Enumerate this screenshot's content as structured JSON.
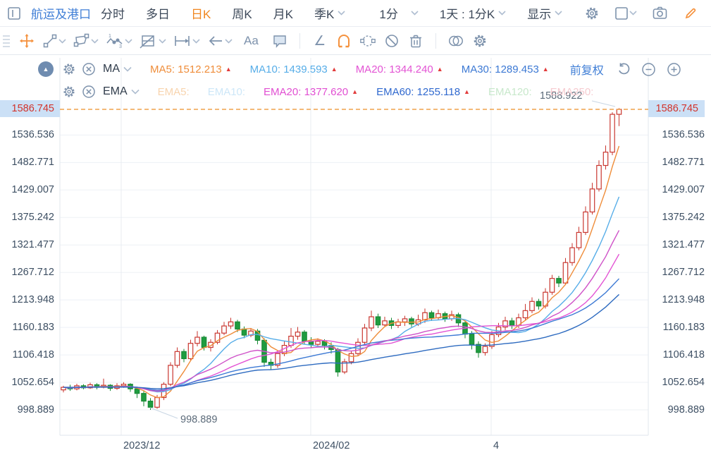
{
  "header": {
    "title": "航运及港口",
    "menu": [
      {
        "label": "分时"
      },
      {
        "label": "多日"
      },
      {
        "label": "日K"
      },
      {
        "label": "周K"
      },
      {
        "label": "月K"
      },
      {
        "label": "季K"
      },
      {
        "label": "1分"
      },
      {
        "label": "1天 : 1分K"
      },
      {
        "label": "显示"
      }
    ]
  },
  "icons": {
    "up_arrow": "▲",
    "collapse_arrow": "▲",
    "text_tool": "Aa",
    "angle_tool": "∠"
  },
  "colors": {
    "accent_orange": "#f5923e",
    "active_tab": "#f0861f",
    "title_blue": "#3f7ed6",
    "up_candle": "#c9362f",
    "down_candle": "#1f9c40",
    "price_line": "#efa24c",
    "chip_bg": "#cbe0f6",
    "chip_text": "#d2332b"
  },
  "indicators": {
    "ma": {
      "name": "MA",
      "adjust_label": "前复权",
      "items": [
        {
          "text": "MA5: 1512.213",
          "color": "#ef8d3a",
          "arrow": true
        },
        {
          "text": "MA10: 1439.593",
          "color": "#56ade8",
          "arrow": true
        },
        {
          "text": "MA20: 1344.240",
          "color": "#e354d4",
          "arrow": true
        },
        {
          "text": "MA30: 1289.453",
          "color": "#3c79d4",
          "arrow": true
        }
      ]
    },
    "ema": {
      "name": "EMA",
      "items": [
        {
          "text": "EMA5:",
          "color": "#f8d4ae",
          "arrow": false
        },
        {
          "text": "EMA10:",
          "color": "#cde7f8",
          "arrow": false
        },
        {
          "text": "EMA20: 1377.620",
          "color": "#e14fd2",
          "arrow": true
        },
        {
          "text": "EMA60: 1255.118",
          "color": "#3069cf",
          "arrow": true
        },
        {
          "text": "EMA120:",
          "color": "#c8e8cb",
          "arrow": false
        },
        {
          "text": "EMA250:",
          "color": "#f6cbd0",
          "arrow": false
        }
      ]
    }
  },
  "chart_data": {
    "type": "candlestick",
    "title": "航运及港口 日K",
    "last_price": "1586.745",
    "high_annotation": "1588.922",
    "low_annotation": "998.889",
    "y_axis_labels": [
      "1586.745",
      "1536.536",
      "1482.771",
      "1429.007",
      "1375.242",
      "1321.477",
      "1267.712",
      "1213.948",
      "1160.183",
      "1106.418",
      "1052.654",
      "998.889"
    ],
    "y_range": [
      998.889,
      1586.745
    ],
    "x_ticks": [
      {
        "label": "2023/12",
        "x": 172
      },
      {
        "label": "2024/02",
        "x": 441
      },
      {
        "label": "4",
        "x": 697
      }
    ],
    "grid": true,
    "legend_position": "top",
    "candles_ohlc": [
      [
        1038,
        1046,
        1033,
        1043
      ],
      [
        1043,
        1048,
        1036,
        1040
      ],
      [
        1040,
        1050,
        1037,
        1046
      ],
      [
        1046,
        1049,
        1039,
        1042
      ],
      [
        1042,
        1052,
        1040,
        1048
      ],
      [
        1048,
        1051,
        1039,
        1043
      ],
      [
        1043,
        1060,
        1041,
        1047
      ],
      [
        1047,
        1049,
        1036,
        1041
      ],
      [
        1041,
        1051,
        1038,
        1046
      ],
      [
        1046,
        1053,
        1042,
        1049
      ],
      [
        1049,
        1051,
        1034,
        1040
      ],
      [
        1040,
        1044,
        1022,
        1031
      ],
      [
        1031,
        1036,
        1006,
        1016
      ],
      [
        1016,
        1022,
        998.889,
        1004
      ],
      [
        1004,
        1028,
        1001,
        1023
      ],
      [
        1023,
        1053,
        1018,
        1049
      ],
      [
        1049,
        1092,
        1045,
        1086
      ],
      [
        1086,
        1121,
        1081,
        1113
      ],
      [
        1113,
        1118,
        1092,
        1099
      ],
      [
        1099,
        1136,
        1095,
        1129
      ],
      [
        1129,
        1153,
        1123,
        1141
      ],
      [
        1141,
        1144,
        1115,
        1121
      ],
      [
        1121,
        1137,
        1113,
        1131
      ],
      [
        1131,
        1155,
        1127,
        1149
      ],
      [
        1149,
        1171,
        1145,
        1163
      ],
      [
        1163,
        1179,
        1157,
        1171
      ],
      [
        1171,
        1175,
        1151,
        1157
      ],
      [
        1157,
        1162,
        1139,
        1145
      ],
      [
        1145,
        1159,
        1141,
        1153
      ],
      [
        1153,
        1157,
        1127,
        1135
      ],
      [
        1135,
        1139,
        1083,
        1092
      ],
      [
        1092,
        1099,
        1077,
        1086
      ],
      [
        1086,
        1115,
        1081,
        1109
      ],
      [
        1109,
        1133,
        1104,
        1125
      ],
      [
        1125,
        1159,
        1120,
        1143
      ],
      [
        1143,
        1161,
        1136,
        1151
      ],
      [
        1151,
        1155,
        1127,
        1133
      ],
      [
        1133,
        1141,
        1121,
        1127
      ],
      [
        1127,
        1139,
        1123,
        1133
      ],
      [
        1133,
        1137,
        1117,
        1125
      ],
      [
        1125,
        1131,
        1109,
        1117
      ],
      [
        1117,
        1120,
        1064,
        1073
      ],
      [
        1073,
        1099,
        1069,
        1093
      ],
      [
        1093,
        1115,
        1088,
        1109
      ],
      [
        1109,
        1139,
        1105,
        1131
      ],
      [
        1131,
        1167,
        1127,
        1159
      ],
      [
        1159,
        1193,
        1153,
        1181
      ],
      [
        1181,
        1187,
        1159,
        1165
      ],
      [
        1165,
        1181,
        1161,
        1173
      ],
      [
        1173,
        1179,
        1157,
        1164
      ],
      [
        1164,
        1177,
        1159,
        1171
      ],
      [
        1171,
        1183,
        1163,
        1177
      ],
      [
        1177,
        1181,
        1161,
        1167
      ],
      [
        1167,
        1185,
        1163,
        1175
      ],
      [
        1175,
        1197,
        1169,
        1189
      ],
      [
        1189,
        1193,
        1173,
        1179
      ],
      [
        1179,
        1195,
        1175,
        1187
      ],
      [
        1187,
        1191,
        1171,
        1177
      ],
      [
        1177,
        1193,
        1173,
        1185
      ],
      [
        1185,
        1189,
        1161,
        1169
      ],
      [
        1169,
        1173,
        1139,
        1147
      ],
      [
        1147,
        1153,
        1117,
        1127
      ],
      [
        1127,
        1133,
        1101,
        1111
      ],
      [
        1111,
        1129,
        1105,
        1123
      ],
      [
        1123,
        1153,
        1118,
        1146
      ],
      [
        1146,
        1169,
        1141,
        1161
      ],
      [
        1161,
        1181,
        1155,
        1173
      ],
      [
        1173,
        1179,
        1157,
        1164
      ],
      [
        1164,
        1187,
        1159,
        1179
      ],
      [
        1179,
        1206,
        1174,
        1193
      ],
      [
        1193,
        1219,
        1188,
        1211
      ],
      [
        1211,
        1216,
        1195,
        1202
      ],
      [
        1202,
        1237,
        1197,
        1229
      ],
      [
        1229,
        1263,
        1224,
        1256
      ],
      [
        1256,
        1261,
        1239,
        1247
      ],
      [
        1247,
        1296,
        1243,
        1287
      ],
      [
        1287,
        1325,
        1281,
        1316
      ],
      [
        1316,
        1357,
        1311,
        1346
      ],
      [
        1346,
        1397,
        1341,
        1386
      ],
      [
        1386,
        1443,
        1381,
        1431
      ],
      [
        1431,
        1487,
        1426,
        1477
      ],
      [
        1477,
        1516,
        1469,
        1503
      ],
      [
        1503,
        1581,
        1497,
        1577
      ],
      [
        1577,
        1588.922,
        1554,
        1586.745
      ]
    ],
    "series": [
      {
        "name": "MA5",
        "kind": "sma",
        "period": 5,
        "color": "#ef8d3a"
      },
      {
        "name": "MA10",
        "kind": "sma",
        "period": 10,
        "color": "#56ade8"
      },
      {
        "name": "MA20",
        "kind": "sma",
        "period": 20,
        "color": "#e354d4"
      },
      {
        "name": "MA30",
        "kind": "sma",
        "period": 30,
        "color": "#3c79d4"
      },
      {
        "name": "EMA20",
        "kind": "ema",
        "period": 20,
        "color": "#cf52c8"
      },
      {
        "name": "EMA60",
        "kind": "ema",
        "period": 60,
        "color": "#2e6bc0"
      }
    ]
  }
}
